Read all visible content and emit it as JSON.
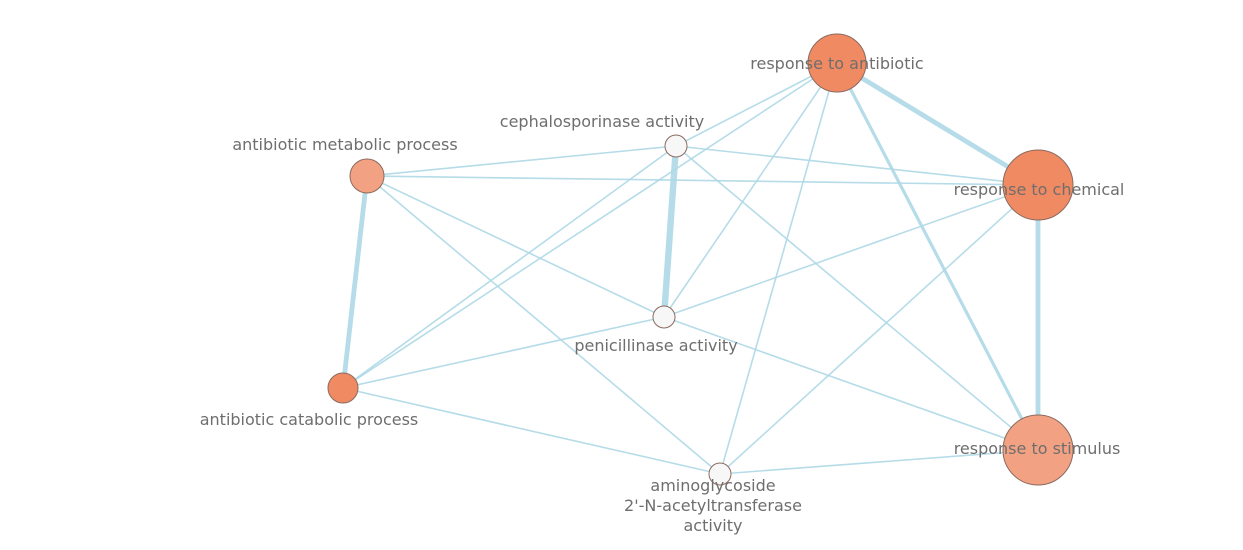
{
  "colors": {
    "edge": "#add8e6",
    "node_stroke": "#8a6a60",
    "node_neutral": "#f7f7f7",
    "node_strong": "#ef8a62",
    "node_medium": "#f09a72",
    "node_light": "#f2a282",
    "label": "#6e6e6e"
  },
  "nodes": [
    {
      "id": "response-to-antibiotic",
      "label_lines": [
        "response to antibiotic"
      ],
      "fill": "#ef8a62"
    },
    {
      "id": "cephalosporinase-activity",
      "label_lines": [
        "cephalosporinase activity"
      ],
      "fill": "#f7f7f7"
    },
    {
      "id": "antibiotic-metabolic-process",
      "label_lines": [
        "antibiotic metabolic process"
      ],
      "fill": "#f2a282"
    },
    {
      "id": "response-to-chemical",
      "label_lines": [
        "response to chemical"
      ],
      "fill": "#ef8a62"
    },
    {
      "id": "penicillinase-activity",
      "label_lines": [
        "penicillinase activity"
      ],
      "fill": "#f7f7f7"
    },
    {
      "id": "antibiotic-catabolic-process",
      "label_lines": [
        "antibiotic catabolic process"
      ],
      "fill": "#ef8a62"
    },
    {
      "id": "response-to-stimulus",
      "label_lines": [
        "response to stimulus"
      ],
      "fill": "#f2a282"
    },
    {
      "id": "aminoglycoside-activity",
      "label_lines": [
        "aminoglycoside",
        "2'-N-acetyltransferase",
        "activity"
      ],
      "fill": "#f7f7f7"
    }
  ],
  "edges": [
    {
      "source": "response-to-antibiotic",
      "target": "response-to-chemical",
      "weight": 3
    },
    {
      "source": "response-to-antibiotic",
      "target": "response-to-stimulus",
      "weight": 2
    },
    {
      "source": "response-to-antibiotic",
      "target": "cephalosporinase-activity",
      "weight": 1
    },
    {
      "source": "response-to-antibiotic",
      "target": "penicillinase-activity",
      "weight": 1
    },
    {
      "source": "response-to-antibiotic",
      "target": "antibiotic-catabolic-process",
      "weight": 1
    },
    {
      "source": "response-to-antibiotic",
      "target": "aminoglycoside-activity",
      "weight": 1
    },
    {
      "source": "response-to-chemical",
      "target": "response-to-stimulus",
      "weight": 3
    },
    {
      "source": "response-to-chemical",
      "target": "cephalosporinase-activity",
      "weight": 1
    },
    {
      "source": "response-to-chemical",
      "target": "penicillinase-activity",
      "weight": 1
    },
    {
      "source": "response-to-chemical",
      "target": "antibiotic-metabolic-process",
      "weight": 1
    },
    {
      "source": "response-to-chemical",
      "target": "aminoglycoside-activity",
      "weight": 1
    },
    {
      "source": "cephalosporinase-activity",
      "target": "penicillinase-activity",
      "weight": 4
    },
    {
      "source": "cephalosporinase-activity",
      "target": "antibiotic-metabolic-process",
      "weight": 1
    },
    {
      "source": "cephalosporinase-activity",
      "target": "antibiotic-catabolic-process",
      "weight": 1
    },
    {
      "source": "cephalosporinase-activity",
      "target": "response-to-stimulus",
      "weight": 1
    },
    {
      "source": "antibiotic-metabolic-process",
      "target": "antibiotic-catabolic-process",
      "weight": 3
    },
    {
      "source": "antibiotic-metabolic-process",
      "target": "penicillinase-activity",
      "weight": 1
    },
    {
      "source": "antibiotic-metabolic-process",
      "target": "aminoglycoside-activity",
      "weight": 1
    },
    {
      "source": "antibiotic-catabolic-process",
      "target": "penicillinase-activity",
      "weight": 1
    },
    {
      "source": "antibiotic-catabolic-process",
      "target": "aminoglycoside-activity",
      "weight": 1
    },
    {
      "source": "penicillinase-activity",
      "target": "response-to-stimulus",
      "weight": 1
    },
    {
      "source": "aminoglycoside-activity",
      "target": "response-to-stimulus",
      "weight": 1
    }
  ]
}
